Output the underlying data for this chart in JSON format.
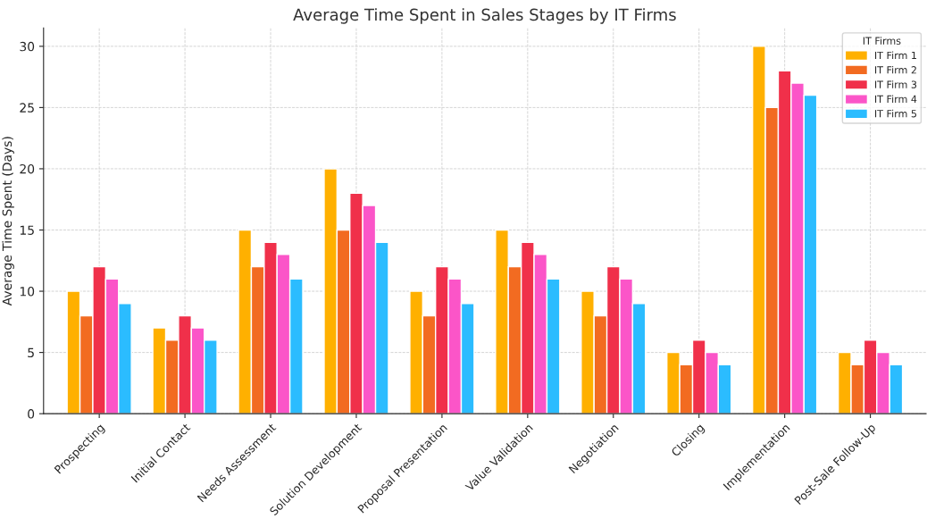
{
  "chart_data": {
    "type": "bar",
    "title": "Average Time Spent in Sales Stages by IT Firms",
    "ylabel": "Average Time Spent (Days)",
    "legend_title": "IT Firms",
    "categories": [
      "Prospecting",
      "Initial Contact",
      "Needs Assessment",
      "Solution Development",
      "Proposal Presentation",
      "Value Validation",
      "Negotiation",
      "Closing",
      "Implementation",
      "Post-Sale Follow-Up"
    ],
    "series": [
      {
        "name": "IT Firm 1",
        "color": "#ffb000",
        "values": [
          10,
          7,
          15,
          20,
          10,
          15,
          10,
          5,
          30,
          5
        ]
      },
      {
        "name": "IT Firm 2",
        "color": "#f26b21",
        "values": [
          8,
          6,
          12,
          15,
          8,
          12,
          8,
          4,
          25,
          4
        ]
      },
      {
        "name": "IT Firm 3",
        "color": "#f0304a",
        "values": [
          12,
          8,
          14,
          18,
          12,
          14,
          12,
          6,
          28,
          6
        ]
      },
      {
        "name": "IT Firm 4",
        "color": "#fb55c8",
        "values": [
          11,
          7,
          13,
          17,
          11,
          13,
          11,
          5,
          27,
          5
        ]
      },
      {
        "name": "IT Firm 5",
        "color": "#2bbcff",
        "values": [
          9,
          6,
          11,
          14,
          9,
          11,
          9,
          4,
          26,
          4
        ]
      }
    ],
    "ylim": [
      0,
      31.5
    ],
    "yticks": [
      0,
      5,
      10,
      15,
      20,
      25,
      30
    ],
    "grid": true,
    "legend": "top right"
  }
}
